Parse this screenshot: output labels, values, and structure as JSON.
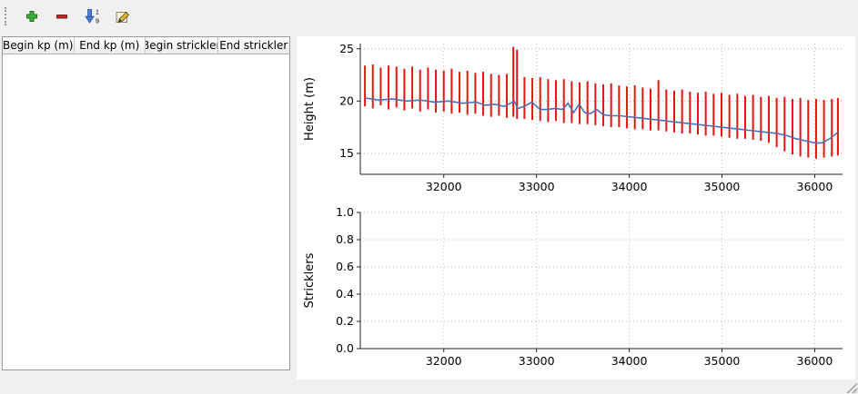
{
  "toolbar": {
    "sort_numbers": [
      "1",
      "9"
    ]
  },
  "table": {
    "columns": [
      {
        "label": "Begin kp (m)"
      },
      {
        "label": "End kp (m)"
      },
      {
        "label": "Begin strickler"
      },
      {
        "label": "End strickler"
      }
    ],
    "rows": []
  },
  "chart_data": [
    {
      "type": "line",
      "title": "",
      "xlabel": "",
      "ylabel": "Height (m)",
      "xlim": [
        31100,
        36300
      ],
      "ylim": [
        13,
        25.5
      ],
      "xticks": [
        32000,
        33000,
        34000,
        35000,
        36000
      ],
      "xticklabels": [
        "32000",
        "33000",
        "34000",
        "35000",
        "36000"
      ],
      "yticks": [
        15,
        20,
        25
      ],
      "yticklabels": [
        "15",
        "20",
        "25"
      ],
      "grid": true,
      "legend": false,
      "bar_color": "#e8150f",
      "line_color": "#4f6fb5",
      "bars": [
        [
          31150,
          19.5,
          23.4
        ],
        [
          31235,
          19.3,
          23.5
        ],
        [
          31320,
          19.6,
          23.2
        ],
        [
          31405,
          19.2,
          23.4
        ],
        [
          31490,
          19.4,
          23.3
        ],
        [
          31575,
          19.1,
          23.1
        ],
        [
          31660,
          19.3,
          23.3
        ],
        [
          31745,
          19.0,
          23.0
        ],
        [
          31830,
          19.2,
          23.2
        ],
        [
          31915,
          18.9,
          23.0
        ],
        [
          32000,
          19.0,
          22.9
        ],
        [
          32085,
          18.8,
          23.1
        ],
        [
          32170,
          18.9,
          22.8
        ],
        [
          32255,
          18.7,
          22.9
        ],
        [
          32340,
          18.8,
          22.7
        ],
        [
          32425,
          18.6,
          22.8
        ],
        [
          32510,
          18.5,
          22.6
        ],
        [
          32595,
          18.6,
          22.5
        ],
        [
          32680,
          18.4,
          22.6
        ],
        [
          32750,
          18.5,
          25.2
        ],
        [
          32790,
          18.3,
          24.9
        ],
        [
          32870,
          18.3,
          22.3
        ],
        [
          32955,
          18.2,
          22.2
        ],
        [
          33040,
          18.1,
          22.3
        ],
        [
          33125,
          18.0,
          22.1
        ],
        [
          33210,
          18.1,
          22.0
        ],
        [
          33295,
          17.9,
          22.1
        ],
        [
          33380,
          17.9,
          21.9
        ],
        [
          33465,
          17.8,
          21.8
        ],
        [
          33550,
          17.8,
          21.9
        ],
        [
          33635,
          17.7,
          21.7
        ],
        [
          33720,
          17.6,
          21.6
        ],
        [
          33805,
          17.5,
          21.7
        ],
        [
          33890,
          17.5,
          21.5
        ],
        [
          33975,
          17.4,
          21.4
        ],
        [
          34060,
          17.3,
          21.5
        ],
        [
          34145,
          17.3,
          21.3
        ],
        [
          34230,
          17.2,
          21.2
        ],
        [
          34315,
          17.2,
          22.0
        ],
        [
          34400,
          17.1,
          21.1
        ],
        [
          34485,
          17.0,
          21.0
        ],
        [
          34570,
          16.9,
          21.1
        ],
        [
          34655,
          16.9,
          20.9
        ],
        [
          34740,
          16.8,
          20.8
        ],
        [
          34825,
          16.7,
          20.9
        ],
        [
          34910,
          16.7,
          20.7
        ],
        [
          34995,
          16.6,
          20.8
        ],
        [
          35080,
          16.5,
          20.6
        ],
        [
          35165,
          16.4,
          20.7
        ],
        [
          35250,
          16.4,
          20.5
        ],
        [
          35335,
          16.3,
          20.6
        ],
        [
          35420,
          16.2,
          20.4
        ],
        [
          35505,
          16.0,
          20.5
        ],
        [
          35590,
          15.6,
          20.3
        ],
        [
          35675,
          15.2,
          20.4
        ],
        [
          35760,
          14.9,
          20.2
        ],
        [
          35845,
          14.7,
          20.3
        ],
        [
          35930,
          14.6,
          20.1
        ],
        [
          36015,
          14.5,
          20.2
        ],
        [
          36100,
          14.6,
          20.1
        ],
        [
          36185,
          14.7,
          20.2
        ],
        [
          36250,
          14.8,
          20.3
        ]
      ],
      "line": [
        [
          31150,
          20.3
        ],
        [
          31300,
          20.1
        ],
        [
          31450,
          20.2
        ],
        [
          31600,
          20.0
        ],
        [
          31750,
          20.1
        ],
        [
          31900,
          19.9
        ],
        [
          32050,
          20.0
        ],
        [
          32200,
          19.8
        ],
        [
          32350,
          19.9
        ],
        [
          32450,
          19.6
        ],
        [
          32550,
          19.7
        ],
        [
          32650,
          19.5
        ],
        [
          32720,
          19.8
        ],
        [
          32760,
          20.0
        ],
        [
          32800,
          19.3
        ],
        [
          32870,
          19.5
        ],
        [
          32950,
          19.9
        ],
        [
          33040,
          19.2
        ],
        [
          33120,
          19.2
        ],
        [
          33200,
          19.3
        ],
        [
          33280,
          19.2
        ],
        [
          33340,
          19.8
        ],
        [
          33400,
          18.9
        ],
        [
          33460,
          19.7
        ],
        [
          33520,
          18.9
        ],
        [
          33580,
          18.8
        ],
        [
          33650,
          19.2
        ],
        [
          33720,
          18.7
        ],
        [
          33800,
          18.6
        ],
        [
          33900,
          18.6
        ],
        [
          34000,
          18.5
        ],
        [
          34100,
          18.4
        ],
        [
          34200,
          18.3
        ],
        [
          34300,
          18.2
        ],
        [
          34400,
          18.1
        ],
        [
          34500,
          18.0
        ],
        [
          34600,
          17.9
        ],
        [
          34700,
          17.8
        ],
        [
          34800,
          17.7
        ],
        [
          34900,
          17.6
        ],
        [
          35000,
          17.5
        ],
        [
          35100,
          17.4
        ],
        [
          35200,
          17.3
        ],
        [
          35300,
          17.2
        ],
        [
          35400,
          17.1
        ],
        [
          35500,
          17.0
        ],
        [
          35600,
          16.9
        ],
        [
          35700,
          16.7
        ],
        [
          35800,
          16.4
        ],
        [
          35900,
          16.2
        ],
        [
          36000,
          16.0
        ],
        [
          36080,
          16.0
        ],
        [
          36160,
          16.4
        ],
        [
          36250,
          17.0
        ]
      ]
    },
    {
      "type": "line",
      "title": "",
      "xlabel": "",
      "ylabel": "Stricklers",
      "xlim": [
        31100,
        36300
      ],
      "ylim": [
        0,
        1
      ],
      "xticks": [
        32000,
        33000,
        34000,
        35000,
        36000
      ],
      "xticklabels": [
        "32000",
        "33000",
        "34000",
        "35000",
        "36000"
      ],
      "yticks": [
        0,
        0.2,
        0.4,
        0.6,
        0.8,
        1
      ],
      "yticklabels": [
        "0.0",
        "0.2",
        "0.4",
        "0.6",
        "0.8",
        "1.0"
      ],
      "grid": true,
      "legend": false,
      "bar_color": "#e8150f",
      "line_color": "#4f6fb5",
      "bars": [],
      "line": []
    }
  ]
}
